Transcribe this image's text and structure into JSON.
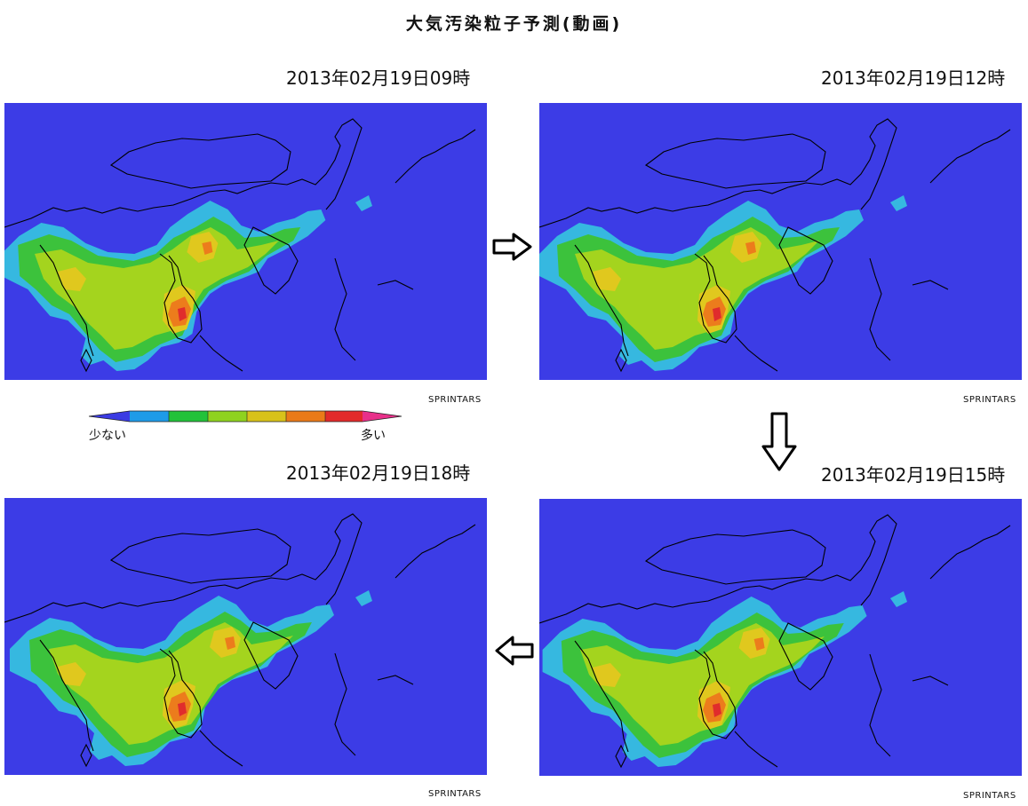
{
  "page": {
    "title": "大気汚染粒子予測(動画)"
  },
  "panels": [
    {
      "timestamp": "2013年02月19日09時",
      "credit": "SPRINTARS",
      "frame": "09"
    },
    {
      "timestamp": "2013年02月19日12時",
      "credit": "SPRINTARS",
      "frame": "12"
    },
    {
      "timestamp": "2013年02月19日15時",
      "credit": "SPRINTARS",
      "frame": "15"
    },
    {
      "timestamp": "2013年02月19日18時",
      "credit": "SPRINTARS",
      "frame": "18"
    }
  ],
  "legend": {
    "low_label": "少ない",
    "high_label": "多い",
    "colors": [
      "#3b3be3",
      "#1e9be8",
      "#22c23a",
      "#8fd21f",
      "#d8c21a",
      "#ea7a18",
      "#e22a2a",
      "#e8308a"
    ]
  },
  "arrows": [
    {
      "icon": "right-arrow-icon"
    },
    {
      "icon": "down-arrow-icon"
    },
    {
      "icon": "left-arrow-icon"
    }
  ],
  "colors": {
    "ocean": "#3c3ce6",
    "low": "#36b8e0",
    "green": "#3cc23c",
    "yellowgreen": "#a4d41e",
    "yellow": "#e0c81e",
    "orange": "#ec7c1c",
    "red": "#e02c2c"
  }
}
